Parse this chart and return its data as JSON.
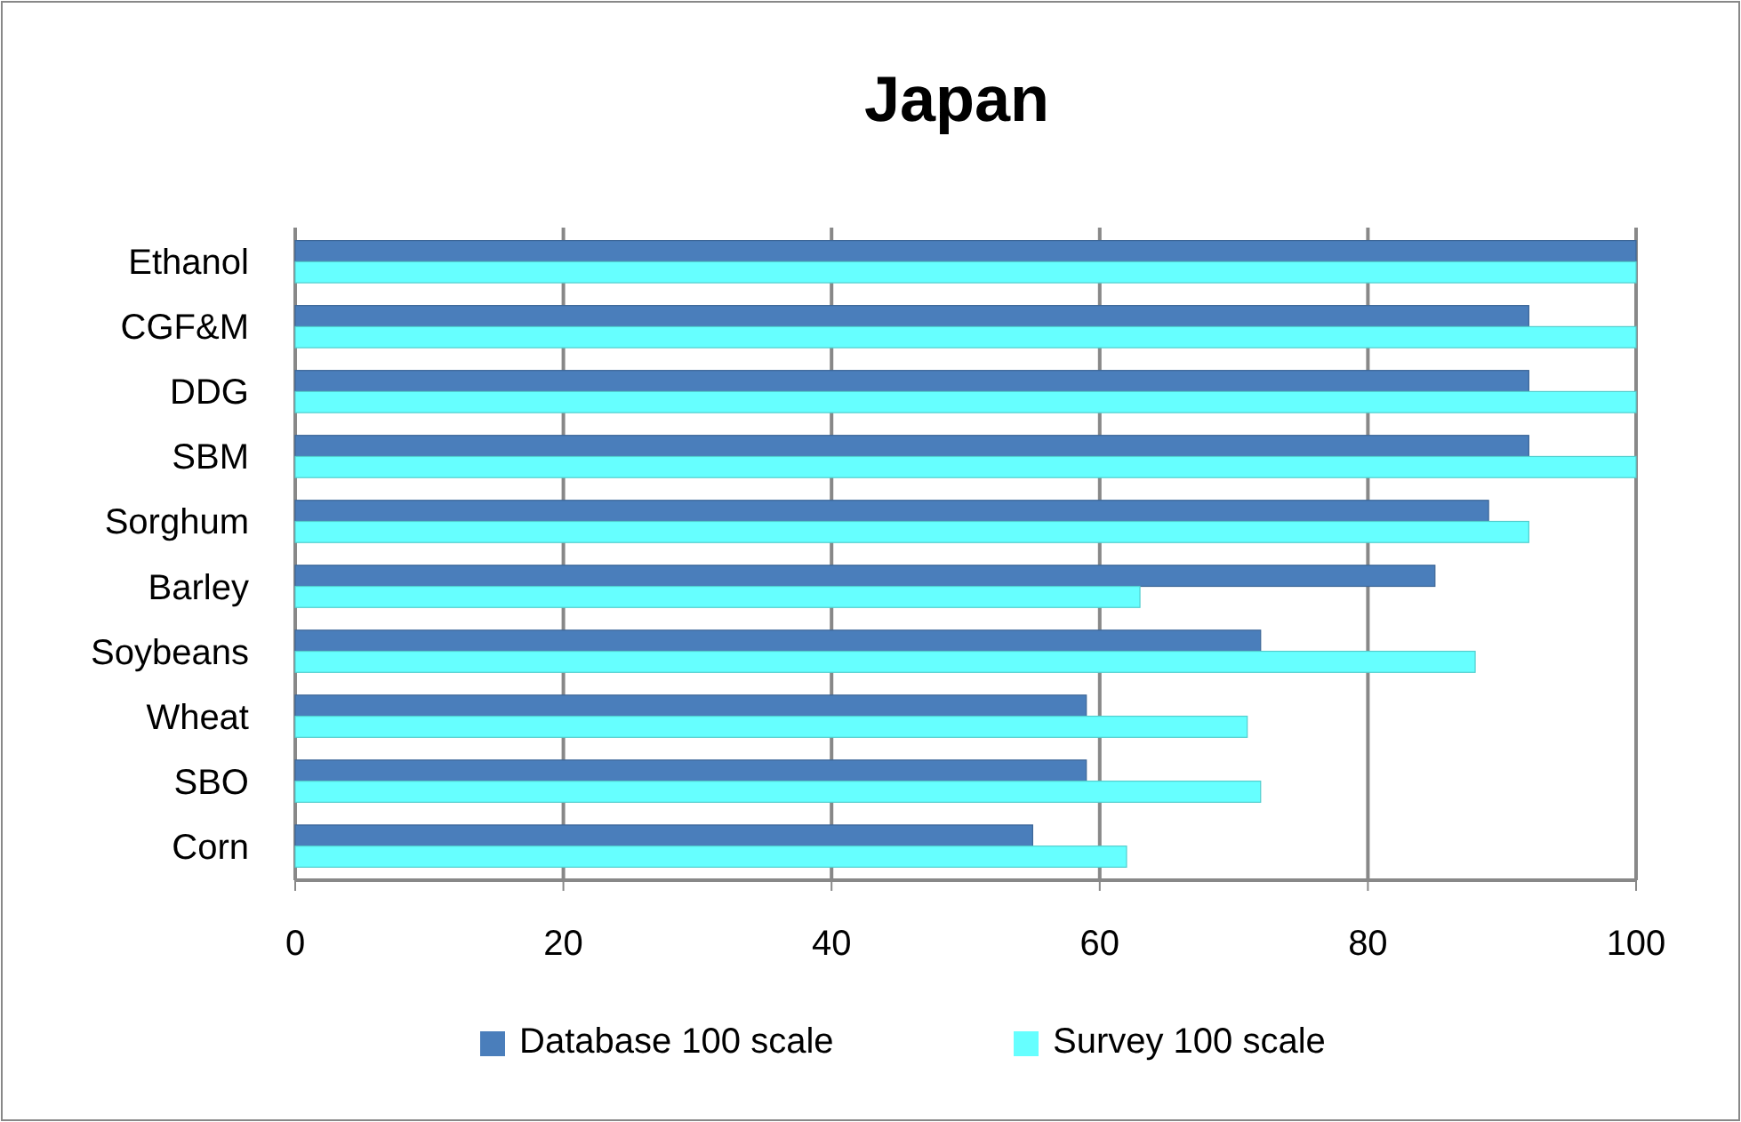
{
  "chart_data": {
    "type": "bar",
    "title": "Japan",
    "orientation": "horizontal",
    "categories": [
      "Ethanol",
      "CGF&M",
      "DDG",
      "SBM",
      "Sorghum",
      "Barley",
      "Soybeans",
      "Wheat",
      "SBO",
      "Corn"
    ],
    "series": [
      {
        "name": "Database 100 scale",
        "color": "#4a7ebb",
        "values": [
          100,
          92,
          92,
          92,
          89,
          85,
          72,
          59,
          59,
          55
        ]
      },
      {
        "name": "Survey 100 scale",
        "color": "#66ffff",
        "values": [
          100,
          100,
          100,
          100,
          92,
          63,
          88,
          71,
          72,
          62
        ]
      }
    ],
    "xlim": [
      0,
      100
    ],
    "xticks": [
      0,
      20,
      40,
      60,
      80,
      100
    ],
    "grid": "x",
    "legend": "bottom"
  }
}
